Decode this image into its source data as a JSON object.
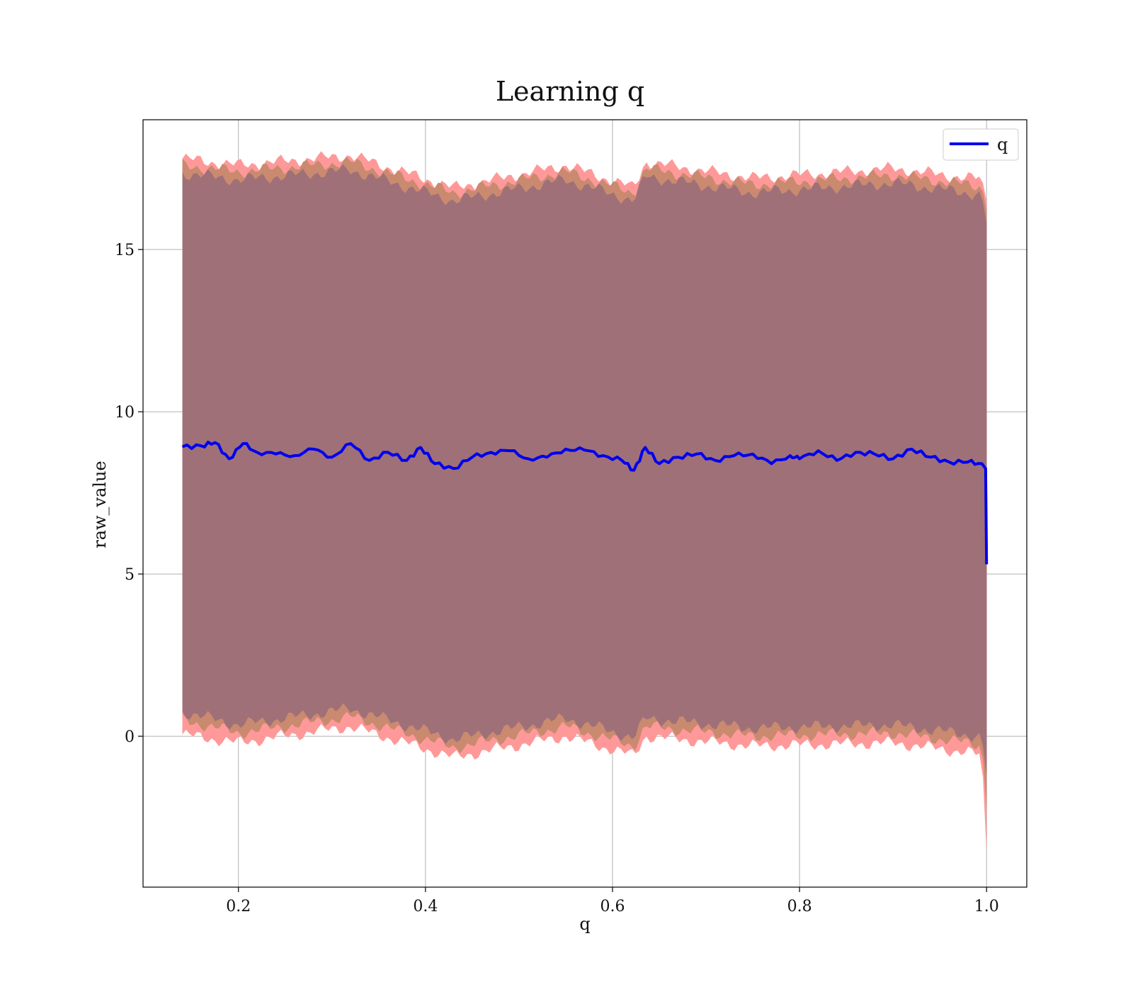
{
  "chart_data": {
    "type": "line",
    "title": "Learning q",
    "xlabel": "q",
    "ylabel": "raw_value",
    "xlim": [
      0.098,
      1.043
    ],
    "ylim": [
      -4.65,
      19.0
    ],
    "xticks": [
      0.2,
      0.4,
      0.6,
      0.8,
      1.0
    ],
    "xtick_labels": [
      "0.2",
      "0.4",
      "0.6",
      "0.8",
      "1.0"
    ],
    "yticks": [
      0,
      5,
      10,
      15
    ],
    "ytick_labels": [
      "0",
      "5",
      "10",
      "15"
    ],
    "grid": true,
    "legend_position": "top-right",
    "colors": {
      "line": "#0000ee",
      "outer_band": "#ff9999",
      "middle_band": "#c98a70",
      "inner_band": "#a07078",
      "grid": "#b0b0b0"
    },
    "series": [
      {
        "name": "q",
        "x": [
          0.14,
          0.16,
          0.175,
          0.19,
          0.205,
          0.22,
          0.24,
          0.26,
          0.28,
          0.3,
          0.32,
          0.34,
          0.36,
          0.38,
          0.395,
          0.41,
          0.43,
          0.45,
          0.47,
          0.49,
          0.51,
          0.53,
          0.55,
          0.57,
          0.59,
          0.61,
          0.623,
          0.635,
          0.65,
          0.67,
          0.69,
          0.71,
          0.73,
          0.75,
          0.77,
          0.79,
          0.8,
          0.82,
          0.84,
          0.86,
          0.88,
          0.9,
          0.92,
          0.94,
          0.96,
          0.98,
          0.995,
          0.999,
          1.0
        ],
        "y": [
          8.92,
          8.95,
          9.05,
          8.55,
          9.02,
          8.75,
          8.7,
          8.65,
          8.85,
          8.6,
          9.02,
          8.5,
          8.75,
          8.5,
          8.9,
          8.4,
          8.25,
          8.6,
          8.75,
          8.8,
          8.55,
          8.6,
          8.85,
          8.82,
          8.65,
          8.5,
          8.2,
          8.9,
          8.4,
          8.6,
          8.7,
          8.5,
          8.65,
          8.7,
          8.4,
          8.65,
          8.55,
          8.8,
          8.5,
          8.75,
          8.7,
          8.55,
          8.85,
          8.6,
          8.45,
          8.45,
          8.4,
          8.25,
          5.3
        ]
      }
    ],
    "bands": [
      {
        "x": [
          0.14,
          0.2,
          0.32,
          0.43,
          0.55,
          0.623,
          0.635,
          0.75,
          0.9,
          0.98,
          0.995,
          1.0
        ],
        "upper": [
          17.8,
          17.6,
          17.9,
          16.9,
          17.6,
          16.9,
          17.7,
          17.2,
          17.5,
          17.2,
          17.2,
          16.5
        ],
        "lower": [
          0.05,
          -0.2,
          0.3,
          -0.65,
          0.0,
          -0.6,
          0.0,
          -0.3,
          -0.2,
          -0.5,
          -0.6,
          -3.6
        ]
      },
      {
        "x": [
          0.14,
          0.2,
          0.32,
          0.43,
          0.55,
          0.623,
          0.635,
          0.75,
          0.9,
          0.98,
          0.995,
          1.0
        ],
        "upper": [
          17.6,
          17.4,
          17.7,
          16.75,
          17.4,
          16.75,
          17.5,
          17.0,
          17.3,
          17.0,
          16.95,
          16.2
        ],
        "lower": [
          0.5,
          0.1,
          0.6,
          -0.35,
          0.3,
          -0.3,
          0.3,
          0.0,
          0.1,
          -0.2,
          -0.3,
          -2.2
        ]
      },
      {
        "x": [
          0.14,
          0.2,
          0.32,
          0.43,
          0.55,
          0.623,
          0.635,
          0.75,
          0.9,
          0.98,
          0.995,
          1.0
        ],
        "upper": [
          17.35,
          17.15,
          17.45,
          16.5,
          17.15,
          16.5,
          17.25,
          16.75,
          17.05,
          16.75,
          16.65,
          15.8
        ],
        "lower": [
          0.75,
          0.35,
          0.85,
          -0.1,
          0.55,
          -0.05,
          0.55,
          0.25,
          0.35,
          0.05,
          -0.05,
          -1.2
        ]
      }
    ]
  }
}
